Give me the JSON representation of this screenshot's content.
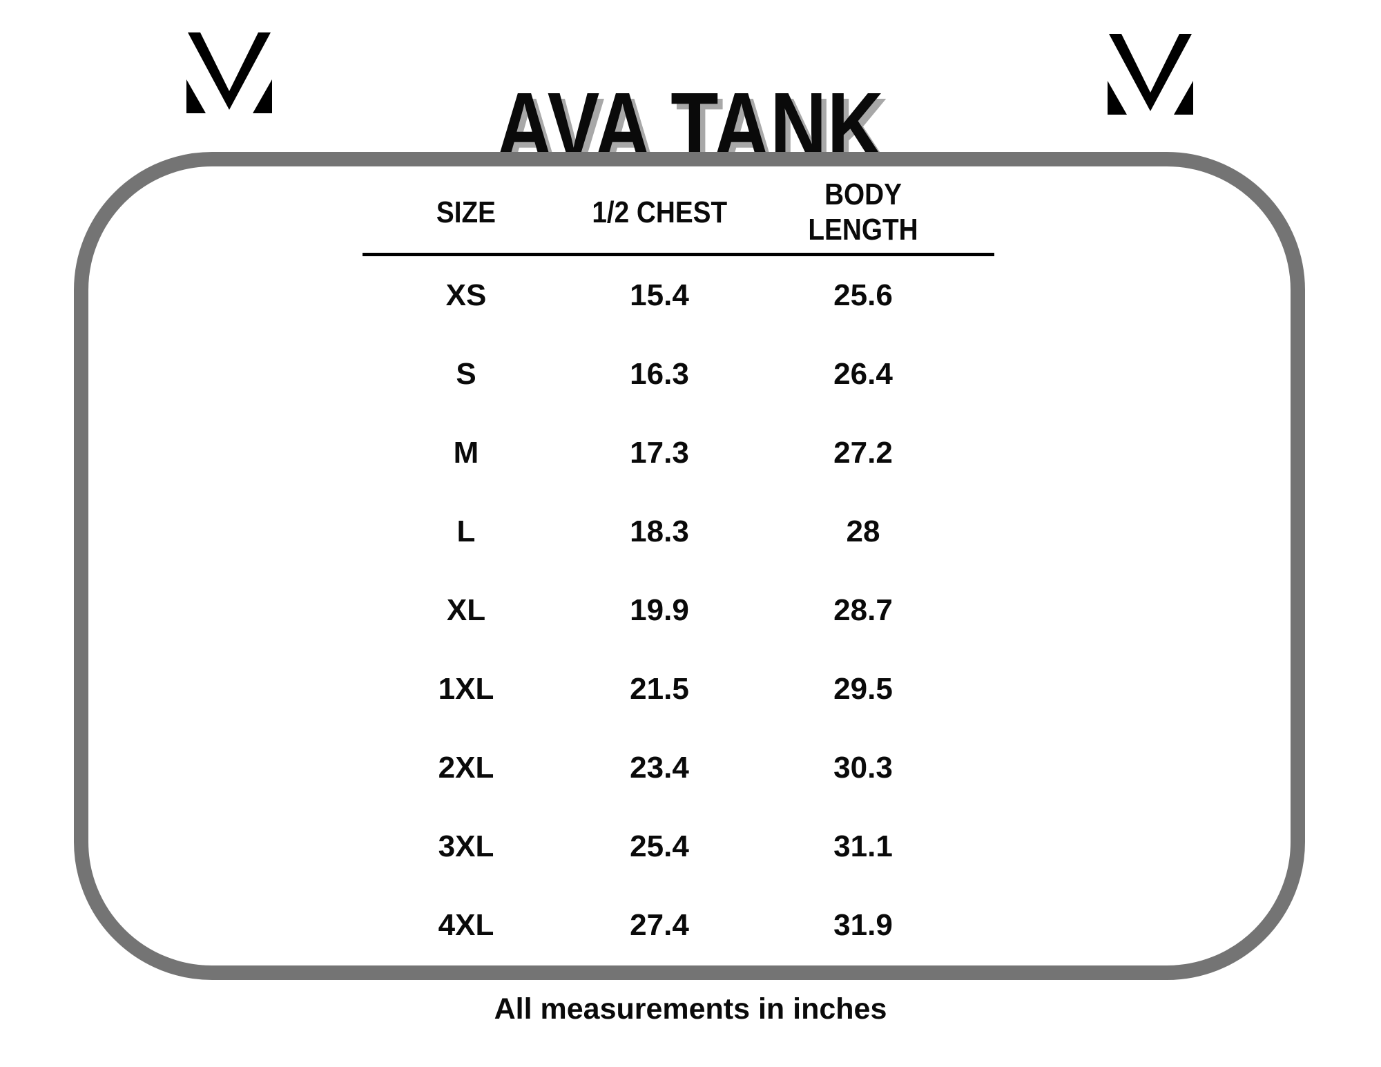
{
  "header": {
    "title": "AVA TANK",
    "logo_name": "m-monogram-logo"
  },
  "table": {
    "columns": [
      "SIZE",
      "1/2 CHEST",
      "BODY LENGTH"
    ],
    "rows": [
      {
        "size": "XS",
        "half_chest": "15.4",
        "body_length": "25.6"
      },
      {
        "size": "S",
        "half_chest": "16.3",
        "body_length": "26.4"
      },
      {
        "size": "M",
        "half_chest": "17.3",
        "body_length": "27.2"
      },
      {
        "size": "L",
        "half_chest": "18.3",
        "body_length": "28"
      },
      {
        "size": "XL",
        "half_chest": "19.9",
        "body_length": "28.7"
      },
      {
        "size": "1XL",
        "half_chest": "21.5",
        "body_length": "29.5"
      },
      {
        "size": "2XL",
        "half_chest": "23.4",
        "body_length": "30.3"
      },
      {
        "size": "3XL",
        "half_chest": "25.4",
        "body_length": "31.1"
      },
      {
        "size": "4XL",
        "half_chest": "27.4",
        "body_length": "31.9"
      }
    ]
  },
  "footer": {
    "note": "All measurements in inches"
  },
  "colors": {
    "text": "#0a0a0a",
    "frame_gray": "#747474",
    "title_shadow": "#a8a8a8"
  }
}
